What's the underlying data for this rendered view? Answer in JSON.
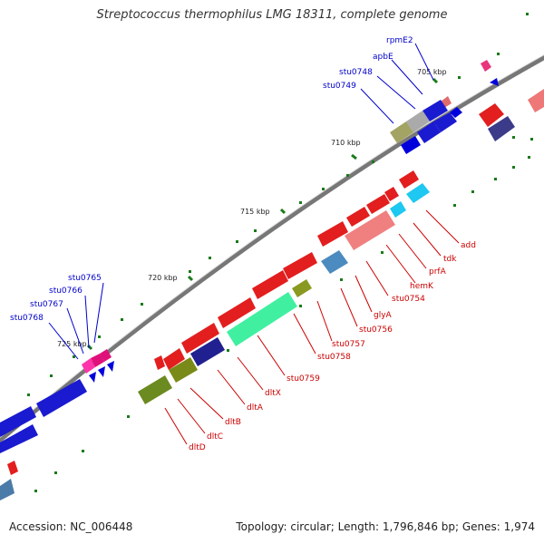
{
  "title": "Streptococcus thermophilus LMG 18311, complete genome",
  "footer": {
    "accession": "Accession: NC_006448",
    "summary": "Topology: circular; Length: 1,796,846 bp; Genes: 1,974"
  },
  "ticks": [
    "705 kbp",
    "710 kbp",
    "715 kbp",
    "720 kbp",
    "725 kbp"
  ],
  "labels": {
    "forward": [
      "rpmE2",
      "apbE",
      "stu0748",
      "stu0749",
      "stu0765",
      "stu0766",
      "stu0767",
      "stu0768"
    ],
    "reverse": [
      "add",
      "tdk",
      "prfA",
      "hemK",
      "stu0754",
      "glyA",
      "stu0756",
      "stu0757",
      "stu0758",
      "stu0759",
      "dltX",
      "dltA",
      "dltB",
      "dltC",
      "dltD"
    ]
  },
  "colors": {
    "forward_label": "#0000cc",
    "reverse_label": "#cc0000",
    "backbone": "#777777",
    "tick_mark": "#008000"
  }
}
